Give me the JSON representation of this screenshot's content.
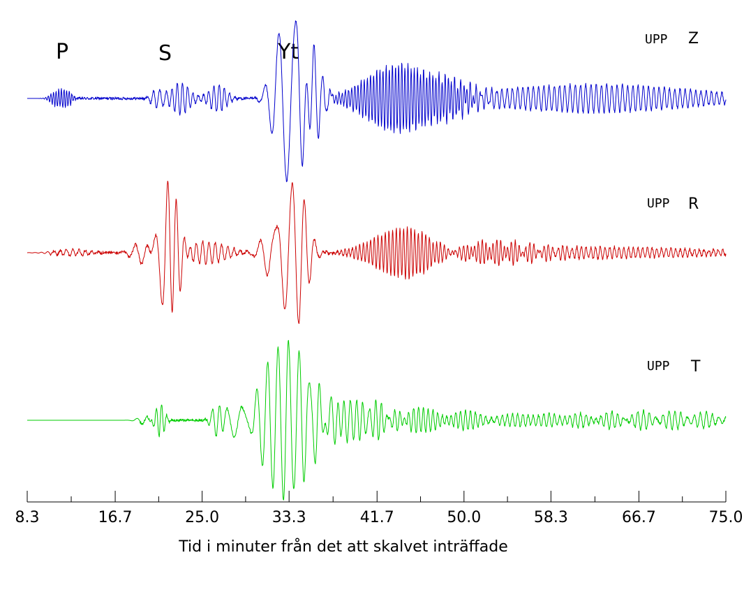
{
  "chart_data": {
    "type": "line",
    "title": "",
    "xlabel": "Tid i minuter från det att skalvet inträffade",
    "ylabel": "",
    "xlim": [
      8.3,
      75.0
    ],
    "x_ticks": [
      "8.3",
      "16.7",
      "25.0",
      "33.3",
      "41.7",
      "50.0",
      "58.3",
      "66.7",
      "75.0"
    ],
    "x_tick_values": [
      8.3,
      16.7,
      25.0,
      33.3,
      41.7,
      50.0,
      58.3,
      66.7,
      75.0
    ],
    "minor_ticks_per_interval": 1,
    "phases": [
      {
        "label": "P",
        "x": 11.7
      },
      {
        "label": "S",
        "x": 21.5
      },
      {
        "label": "Yt",
        "x": 33.0
      }
    ],
    "series": [
      {
        "name": "Z",
        "station": "UPP",
        "color": "#0000cc",
        "events": [
          {
            "t": 11.0,
            "a": 0.08,
            "p": 0.25,
            "d": 0.5
          },
          {
            "t": 12.0,
            "a": 0.1,
            "p": 0.25,
            "d": 0.5
          },
          {
            "t": 20.8,
            "a": 0.12,
            "p": 0.6,
            "d": 0.6
          },
          {
            "t": 23.0,
            "a": 0.2,
            "p": 0.5,
            "d": 0.8
          },
          {
            "t": 26.5,
            "a": 0.17,
            "p": 0.5,
            "d": 0.8
          },
          {
            "t": 32.0,
            "a": 0.25,
            "p": 1.2,
            "d": 0.9
          },
          {
            "t": 33.5,
            "a": 1.0,
            "p": 1.6,
            "d": 1.1
          },
          {
            "t": 35.5,
            "a": 0.55,
            "p": 0.8,
            "d": 0.9
          },
          {
            "t": 44.0,
            "a": 0.45,
            "p": 0.3,
            "d": 3.0
          },
          {
            "t": 47.5,
            "a": 0.3,
            "p": 0.3,
            "d": 2.5
          },
          {
            "t": 59.0,
            "a": 0.1,
            "p": 0.5,
            "d": 10.0
          },
          {
            "t": 65.0,
            "a": 0.08,
            "p": 0.5,
            "d": 8.0
          }
        ]
      },
      {
        "name": "R",
        "station": "UPP",
        "color": "#cc0000",
        "events": [
          {
            "t": 12.5,
            "a": 0.04,
            "p": 0.6,
            "d": 1.5
          },
          {
            "t": 19.5,
            "a": 0.15,
            "p": 1.2,
            "d": 1.0
          },
          {
            "t": 21.5,
            "a": 0.62,
            "p": 1.4,
            "d": 0.8
          },
          {
            "t": 22.3,
            "a": 1.0,
            "p": 0.9,
            "d": 0.5
          },
          {
            "t": 25.5,
            "a": 0.14,
            "p": 0.6,
            "d": 1.8
          },
          {
            "t": 31.5,
            "a": 0.3,
            "p": 1.3,
            "d": 0.8
          },
          {
            "t": 33.2,
            "a": 0.82,
            "p": 1.3,
            "d": 0.8
          },
          {
            "t": 34.5,
            "a": 0.55,
            "p": 1.0,
            "d": 0.8
          },
          {
            "t": 44.5,
            "a": 0.32,
            "p": 0.35,
            "d": 2.8
          },
          {
            "t": 52.0,
            "a": 0.12,
            "p": 0.35,
            "d": 4.0
          },
          {
            "t": 62.0,
            "a": 0.07,
            "p": 0.45,
            "d": 10.0
          }
        ]
      },
      {
        "name": "T",
        "station": "UPP",
        "color": "#00cc00",
        "events": [
          {
            "t": 19.5,
            "a": 0.05,
            "p": 1.0,
            "d": 0.6
          },
          {
            "t": 21.0,
            "a": 0.22,
            "p": 0.5,
            "d": 0.4
          },
          {
            "t": 26.5,
            "a": 0.22,
            "p": 0.7,
            "d": 0.5
          },
          {
            "t": 28.5,
            "a": 0.3,
            "p": 1.5,
            "d": 0.7
          },
          {
            "t": 29.5,
            "a": 0.25,
            "p": 1.2,
            "d": 0.6
          },
          {
            "t": 33.0,
            "a": 1.0,
            "p": 1.0,
            "d": 2.2
          },
          {
            "t": 39.0,
            "a": 0.25,
            "p": 0.6,
            "d": 3.0
          },
          {
            "t": 46.0,
            "a": 0.12,
            "p": 0.45,
            "d": 4.0
          },
          {
            "t": 58.0,
            "a": 0.07,
            "p": 0.5,
            "d": 12.0
          },
          {
            "t": 70.0,
            "a": 0.08,
            "p": 0.6,
            "d": 6.0
          }
        ]
      }
    ]
  }
}
